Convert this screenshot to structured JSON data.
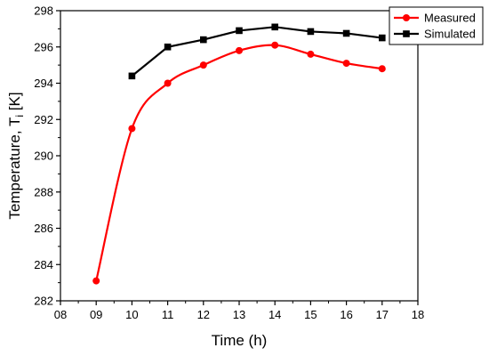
{
  "chart_data": {
    "type": "line",
    "xlabel": "Time (h)",
    "ylabel_main": "Temperature, T",
    "ylabel_sub": "i",
    "ylabel_unit": " [K]",
    "xlim": [
      8,
      18
    ],
    "ylim": [
      282,
      298
    ],
    "x_ticks": [
      8,
      9,
      10,
      11,
      12,
      13,
      14,
      15,
      16,
      17,
      18
    ],
    "x_tick_labels": [
      "08",
      "09",
      "10",
      "11",
      "12",
      "13",
      "14",
      "15",
      "16",
      "17",
      "18"
    ],
    "y_ticks": [
      282,
      284,
      286,
      288,
      290,
      292,
      294,
      296,
      298
    ],
    "y_tick_labels": [
      "282",
      "284",
      "286",
      "288",
      "290",
      "292",
      "294",
      "296",
      "298"
    ],
    "grid": false,
    "legend_position": "top-right",
    "series": [
      {
        "name": "Measured",
        "color": "#ff0000",
        "marker": "circle",
        "smooth": true,
        "x": [
          9,
          10,
          11,
          12,
          13,
          14,
          15,
          16,
          17
        ],
        "y": [
          283.1,
          291.5,
          294.0,
          295.0,
          295.8,
          296.1,
          295.6,
          295.1,
          294.8
        ]
      },
      {
        "name": "Simulated",
        "color": "#000000",
        "marker": "square",
        "smooth": false,
        "x": [
          10,
          11,
          12,
          13,
          14,
          15,
          16,
          17
        ],
        "y": [
          294.4,
          296.0,
          296.4,
          296.9,
          297.1,
          296.85,
          296.75,
          296.5
        ]
      }
    ]
  }
}
